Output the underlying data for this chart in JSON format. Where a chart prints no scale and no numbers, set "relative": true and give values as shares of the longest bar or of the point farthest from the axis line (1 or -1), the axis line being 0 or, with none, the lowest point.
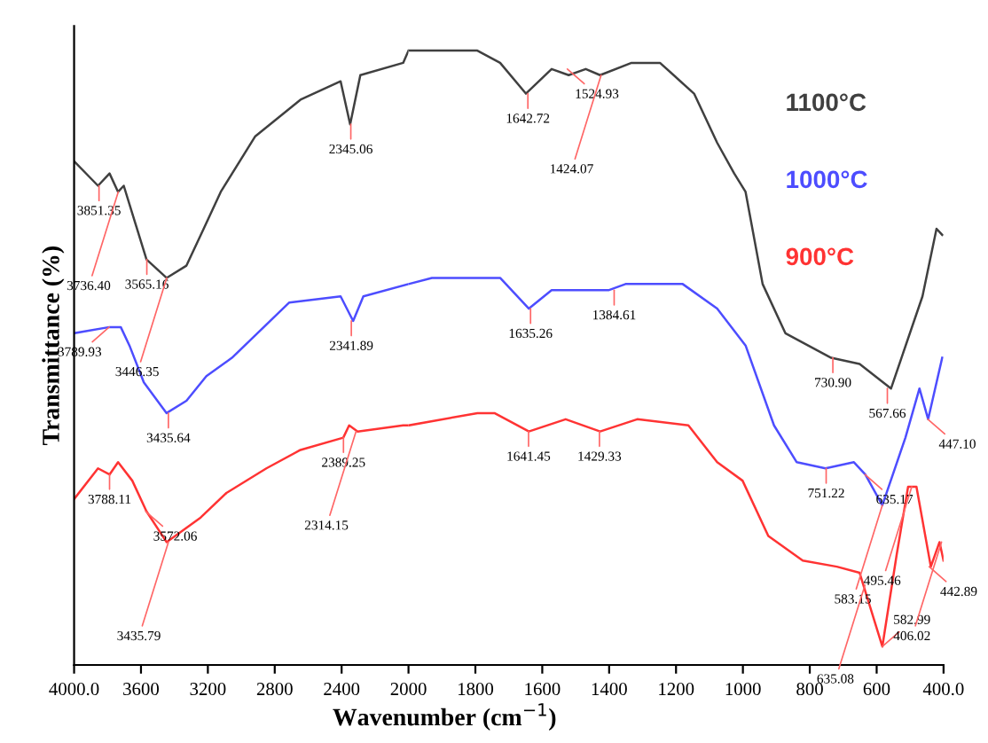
{
  "chart_data": [
    {
      "type": "line",
      "relative": true,
      "ylabel": "Transmittance (%)",
      "xlim": [
        4000,
        2000
      ],
      "xticks": [
        {
          "value": 4000,
          "label": "4000.0"
        },
        3600,
        3200,
        2800,
        2400
      ],
      "grid": false,
      "marker": "none",
      "line_style": "solid",
      "series": [
        {
          "color": "#404040",
          "x": [
            4000,
            3857,
            3788,
            3737,
            3703,
            3635,
            3567,
            3447,
            3328,
            3225,
            3123,
            2918,
            2646,
            2406,
            2349,
            2288,
            2032,
            2000
          ],
          "values": [
            0.82,
            0.78,
            0.8,
            0.77,
            0.78,
            0.72,
            0.66,
            0.63,
            0.65,
            0.71,
            0.77,
            0.86,
            0.92,
            0.95,
            0.88,
            0.96,
            0.98,
            1.0
          ]
        },
        {
          "color": "#4d4dff",
          "x": [
            4000,
            3788,
            3721,
            3669,
            3583,
            3447,
            3328,
            3209,
            3056,
            2713,
            2406,
            2331,
            2270,
            2000
          ],
          "values": [
            0.54,
            0.55,
            0.55,
            0.52,
            0.46,
            0.41,
            0.43,
            0.47,
            0.5,
            0.59,
            0.6,
            0.56,
            0.6,
            0.62
          ]
        },
        {
          "color": "#ff3333",
          "x": [
            4000,
            3857,
            3788,
            3737,
            3652,
            3567,
            3447,
            3243,
            3089,
            2850,
            2646,
            2390,
            2355,
            2304,
            2032,
            2000
          ],
          "values": [
            0.27,
            0.32,
            0.31,
            0.33,
            0.3,
            0.25,
            0.2,
            0.24,
            0.28,
            0.32,
            0.35,
            0.37,
            0.39,
            0.38,
            0.39,
            0.39
          ]
        }
      ],
      "annotations": [
        {
          "text": "3851.35",
          "x": 3851,
          "y": 0.78
        },
        {
          "text": "3736.40",
          "x": 3736,
          "y": 0.77
        },
        {
          "text": "3565.16",
          "x": 3565,
          "y": 0.66
        },
        {
          "text": "3446.35",
          "x": 3446,
          "y": 0.63
        },
        {
          "text": "2345.06",
          "x": 2345,
          "y": 0.88
        },
        {
          "text": "3789.93",
          "x": 3790,
          "y": 0.55
        },
        {
          "text": "3435.64",
          "x": 3436,
          "y": 0.41
        },
        {
          "text": "2341.89",
          "x": 2342,
          "y": 0.56
        },
        {
          "text": "3788.11",
          "x": 3788,
          "y": 0.31
        },
        {
          "text": "3572.06",
          "x": 3572,
          "y": 0.25
        },
        {
          "text": "3435.79",
          "x": 3436,
          "y": 0.2
        },
        {
          "text": "2389.25",
          "x": 2389,
          "y": 0.37
        },
        {
          "text": "2314.15",
          "x": 2314,
          "y": 0.38
        }
      ]
    },
    {
      "type": "line",
      "relative": true,
      "xlabel": "Wavenumber (cm$^{−1}$)",
      "xlim": [
        2000,
        400
      ],
      "xticks": [
        2000,
        1800,
        1600,
        1400,
        1200,
        1000,
        800,
        600,
        {
          "value": 400,
          "label": "400.0"
        }
      ],
      "legend": "top right",
      "grid": false,
      "marker": "none",
      "line_style": "solid",
      "series": [
        {
          "name": "1100°C",
          "color": "#404040",
          "x": [
            2000,
            1794,
            1726,
            1649,
            1572,
            1521,
            1470,
            1427,
            1333,
            1248,
            1146,
            1077,
            1026,
            992,
            941,
            873,
            736,
            651,
            557,
            463,
            421,
            404
          ],
          "values": [
            1.0,
            1.0,
            0.98,
            0.93,
            0.97,
            0.96,
            0.97,
            0.96,
            0.98,
            0.98,
            0.93,
            0.85,
            0.8,
            0.77,
            0.62,
            0.54,
            0.5,
            0.49,
            0.45,
            0.6,
            0.71,
            0.7
          ]
        },
        {
          "name": "1000°C",
          "color": "#4d4dff",
          "x": [
            2000,
            1930,
            1777,
            1726,
            1640,
            1572,
            1402,
            1351,
            1180,
            1077,
            992,
            907,
            839,
            753,
            668,
            634,
            583,
            514,
            472,
            446,
            404
          ],
          "values": [
            0.62,
            0.63,
            0.63,
            0.63,
            0.58,
            0.61,
            0.61,
            0.62,
            0.62,
            0.58,
            0.52,
            0.39,
            0.33,
            0.32,
            0.33,
            0.31,
            0.26,
            0.37,
            0.45,
            0.4,
            0.5
          ]
        },
        {
          "name": "900°C",
          "color": "#ff3333",
          "x": [
            2000,
            1794,
            1743,
            1640,
            1530,
            1427,
            1316,
            1163,
            1077,
            1001,
            924,
            821,
            719,
            651,
            583,
            540,
            506,
            481,
            438,
            412,
            400
          ],
          "values": [
            0.39,
            0.41,
            0.41,
            0.38,
            0.4,
            0.38,
            0.4,
            0.39,
            0.33,
            0.3,
            0.21,
            0.17,
            0.16,
            0.15,
            0.03,
            0.18,
            0.29,
            0.29,
            0.16,
            0.2,
            0.17
          ]
        }
      ],
      "annotations": [
        {
          "text": "1642.72",
          "x": 1643,
          "y": 0.93
        },
        {
          "text": "1524.93",
          "x": 1525,
          "y": 0.97
        },
        {
          "text": "1424.07",
          "x": 1424,
          "y": 0.96
        },
        {
          "text": "730.90",
          "x": 731,
          "y": 0.5
        },
        {
          "text": "567.66",
          "x": 568,
          "y": 0.45
        },
        {
          "text": "447.10",
          "x": 447,
          "y": 0.4
        },
        {
          "text": "1635.26",
          "x": 1635,
          "y": 0.58
        },
        {
          "text": "1384.61",
          "x": 1385,
          "y": 0.61
        },
        {
          "text": "751.22",
          "x": 751,
          "y": 0.32
        },
        {
          "text": "635.17",
          "x": 635,
          "y": 0.31
        },
        {
          "text": "583.15",
          "x": 583,
          "y": 0.26
        },
        {
          "text": "1641.45",
          "x": 1641,
          "y": 0.38
        },
        {
          "text": "1429.33",
          "x": 1429,
          "y": 0.38
        },
        {
          "text": "635.08",
          "x": 635,
          "y": 0.13
        },
        {
          "text": "582.99",
          "x": 583,
          "y": 0.03
        },
        {
          "text": "495.46",
          "x": 495,
          "y": 0.29
        },
        {
          "text": "442.89",
          "x": 443,
          "y": 0.16
        },
        {
          "text": "406.02",
          "x": 406,
          "y": 0.2
        }
      ]
    }
  ]
}
